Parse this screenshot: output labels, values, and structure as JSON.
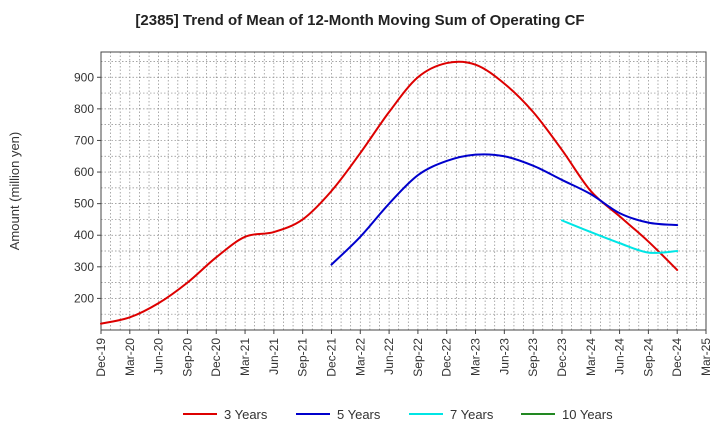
{
  "chart_data": {
    "type": "line",
    "title": "[2385]  Trend of Mean of 12-Month Moving Sum of Operating CF",
    "xlabel": "",
    "ylabel": "Amount (million yen)",
    "ylim": [
      100,
      980
    ],
    "yticks": [
      200,
      300,
      400,
      500,
      600,
      700,
      800,
      900
    ],
    "grid": true,
    "legend_position": "bottom",
    "categories": [
      "Dec-19",
      "Mar-20",
      "Jun-20",
      "Sep-20",
      "Dec-20",
      "Mar-21",
      "Jun-21",
      "Sep-21",
      "Dec-21",
      "Mar-22",
      "Jun-22",
      "Sep-22",
      "Dec-22",
      "Mar-23",
      "Jun-23",
      "Sep-23",
      "Dec-23",
      "Mar-24",
      "Jun-24",
      "Sep-24",
      "Dec-24",
      "Mar-25"
    ],
    "series": [
      {
        "name": "3 Years",
        "color": "#dd0000",
        "values": [
          120,
          140,
          185,
          250,
          330,
          395,
          410,
          450,
          540,
          660,
          790,
          900,
          945,
          940,
          880,
          790,
          670,
          540,
          460,
          380,
          290,
          null
        ]
      },
      {
        "name": "5 Years",
        "color": "#0000cc",
        "values": [
          null,
          null,
          null,
          null,
          null,
          null,
          null,
          null,
          307,
          395,
          500,
          590,
          635,
          655,
          650,
          620,
          575,
          530,
          470,
          440,
          432,
          null
        ]
      },
      {
        "name": "7 Years",
        "color": "#00e5e5",
        "values": [
          null,
          null,
          null,
          null,
          null,
          null,
          null,
          null,
          null,
          null,
          null,
          null,
          null,
          null,
          null,
          null,
          447,
          410,
          375,
          345,
          350,
          null
        ]
      },
      {
        "name": "10 Years",
        "color": "#228822",
        "values": [
          null,
          null,
          null,
          null,
          null,
          null,
          null,
          null,
          null,
          null,
          null,
          null,
          null,
          null,
          null,
          null,
          null,
          null,
          null,
          null,
          null,
          null
        ]
      }
    ]
  }
}
